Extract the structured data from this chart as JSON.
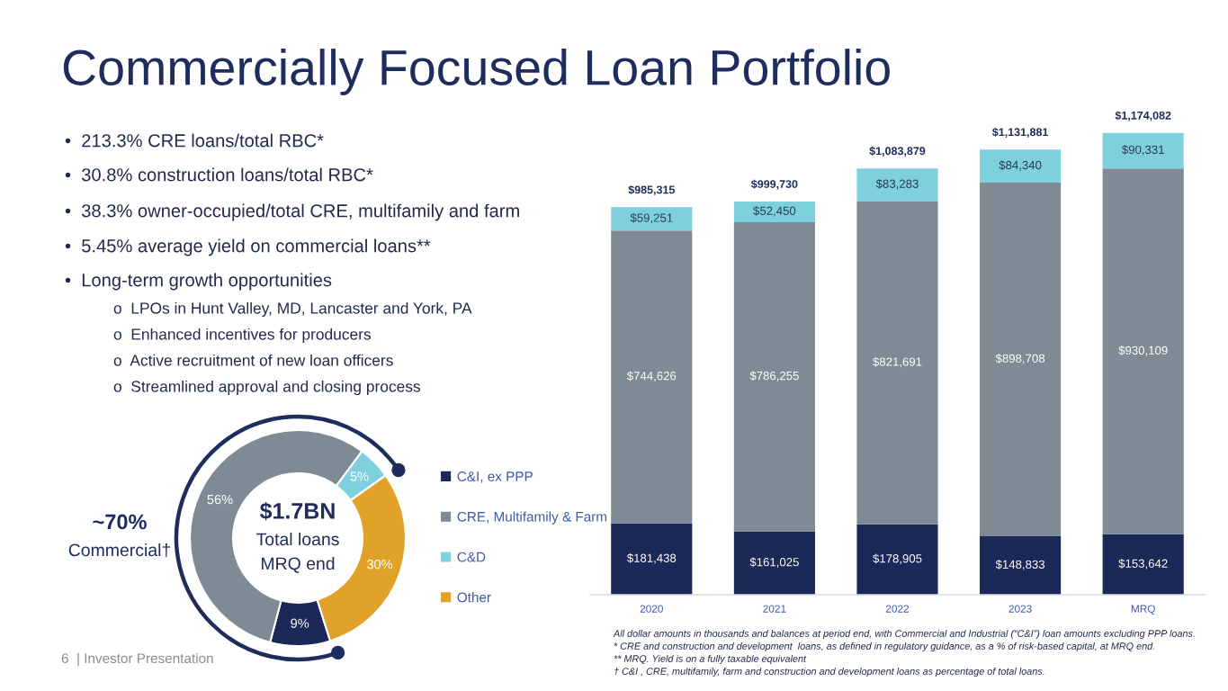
{
  "chart_data": [
    {
      "type": "other",
      "title": "Commercially Focused Loan Portfolio",
      "annotations": [
        "•  213.3% CRE loans/total RBC*",
        "•  30.8% construction loans/total RBC*",
        "•  38.3% owner-occupied/total CRE, multifamily and farm",
        "•  5.45% average yield on commercial loans**",
        "•  Long-term growth opportunities",
        "o  LPOs in Hunt Valley, MD, Lancaster and York, PA",
        "o  Enhanced incentives for producers",
        "o  Active recruitment of new loan officers",
        "o  Streamlined approval and closing process",
        "6  | Investor Presentation"
      ]
    },
    {
      "type": "donut",
      "categories": [
        "C&I, ex PPP",
        "CRE, Multifamily & Farm",
        "C&D",
        "Other"
      ],
      "values": [
        9,
        56,
        5,
        30
      ],
      "colors": [
        "#1b2858",
        "#7e8a94",
        "#7fd0df",
        "#e1a22a"
      ],
      "value_labels": [
        "9%",
        "56%",
        "5%",
        "30%"
      ],
      "legend": "right",
      "annotations": [
        "$1.7BN",
        "Total loans",
        "MRQ end",
        "~70%",
        "Commercial†"
      ]
    },
    {
      "type": "bar",
      "stacked": true,
      "categories": [
        "2020",
        "2021",
        "2022",
        "2023",
        "MRQ"
      ],
      "series": [
        {
          "color": "#1b2858",
          "values": [
            181438,
            161025,
            178905,
            148833,
            153642
          ],
          "value_labels": [
            "$181,438",
            "$161,025",
            "$178,905",
            "$148,833",
            "$153,642"
          ]
        },
        {
          "color": "#7e8a94",
          "values": [
            744626,
            786255,
            821691,
            898708,
            930109
          ],
          "value_labels": [
            "$744,626",
            "$786,255",
            "$821,691",
            "$898,708",
            "$930,109"
          ]
        },
        {
          "color": "#7fd0df",
          "values": [
            59251,
            52450,
            83283,
            84340,
            90331
          ],
          "value_labels": [
            "$59,251",
            "$52,450",
            "$83,283",
            "$84,340",
            "$90,331"
          ]
        }
      ],
      "totals": [
        "$985,315",
        "$999,730",
        "$1,083,879",
        "$1,131,881",
        "$1,174,082"
      ],
      "tick_labels": "x",
      "annotations": [
        "All dollar amounts in thousands and balances at period end, with Commercial and Industrial (“C&I”) loan amounts excluding PPP loans.",
        "* CRE and construction and development  loans, as defined in regulatory guidance, as a % of risk-based capital, at MRQ end.",
        "** MRQ. Yield is on a fully taxable equivalent",
        "† C&I , CRE, multifamily, farm and construction and development loans as percentage of total loans."
      ]
    }
  ]
}
